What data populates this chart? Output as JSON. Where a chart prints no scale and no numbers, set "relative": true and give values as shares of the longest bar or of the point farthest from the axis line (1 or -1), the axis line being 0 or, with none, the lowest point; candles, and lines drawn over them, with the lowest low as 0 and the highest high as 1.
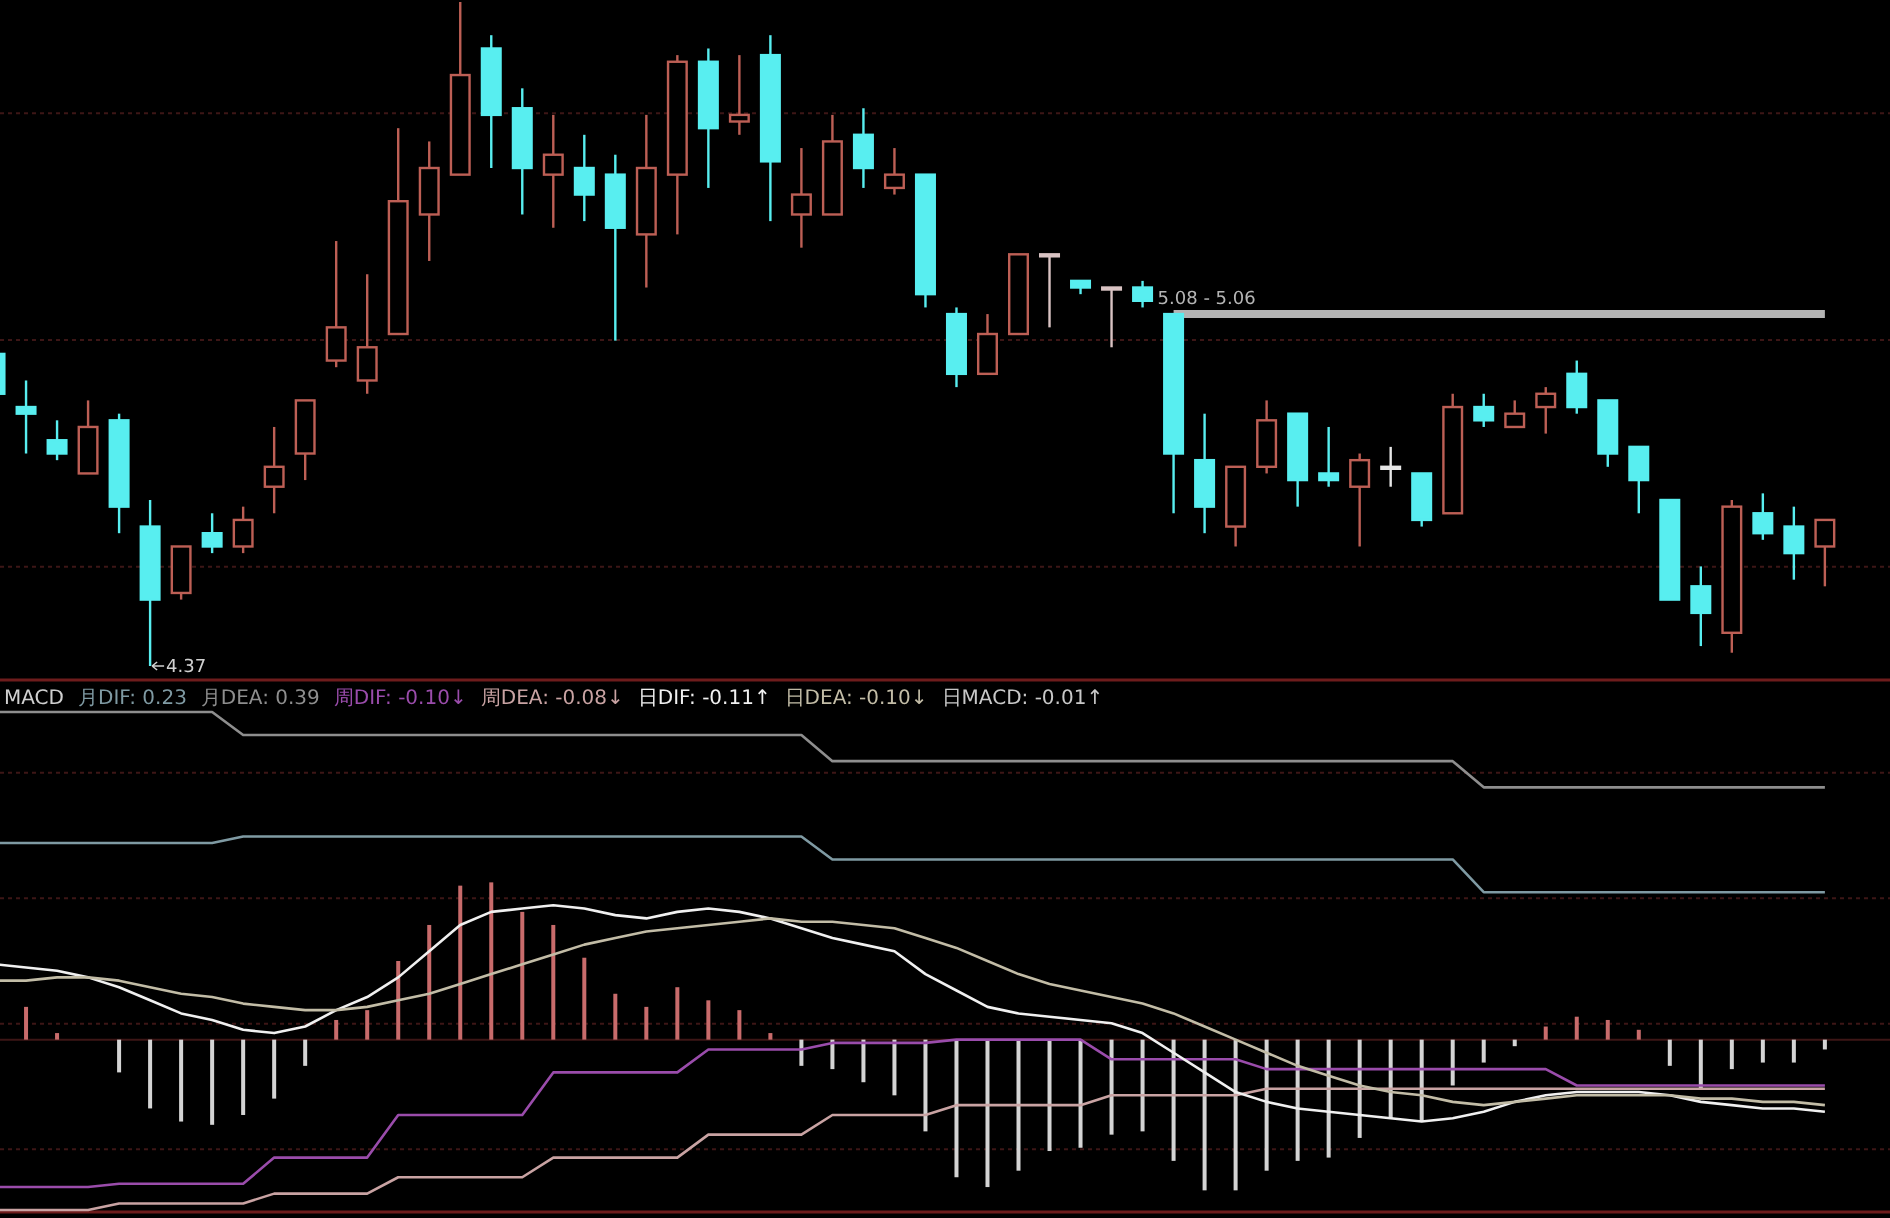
{
  "chart_data": [
    {
      "type": "candlestick",
      "relative": true,
      "grid": "y",
      "categories": [
        null,
        null,
        null,
        null,
        null,
        null,
        null,
        null,
        null,
        null,
        null,
        null,
        null,
        null,
        null,
        null,
        null,
        null,
        null,
        null,
        null,
        null,
        null,
        null,
        null,
        null,
        null,
        null,
        null,
        null,
        null,
        null,
        null,
        null,
        null,
        null,
        null,
        null,
        null,
        null,
        null,
        null,
        null,
        null,
        null,
        null,
        null,
        null,
        null,
        null,
        null,
        null,
        null,
        null,
        null,
        null,
        null,
        null,
        null,
        null
      ],
      "ohlc": [
        [
          0.47,
          0.48,
          0.4,
          0.41
        ],
        [
          0.39,
          0.43,
          0.32,
          0.38
        ],
        [
          0.34,
          0.37,
          0.31,
          0.32
        ],
        [
          0.29,
          0.4,
          0.29,
          0.36
        ],
        [
          0.37,
          0.38,
          0.2,
          0.24
        ],
        [
          0.21,
          0.25,
          0,
          0.1
        ],
        [
          0.11,
          0.18,
          0.1,
          0.18
        ],
        [
          0.2,
          0.23,
          0.17,
          0.18
        ],
        [
          0.18,
          0.24,
          0.17,
          0.22
        ],
        [
          0.27,
          0.36,
          0.23,
          0.3
        ],
        [
          0.32,
          0.4,
          0.28,
          0.4
        ],
        [
          0.46,
          0.64,
          0.45,
          0.51
        ],
        [
          0.43,
          0.59,
          0.41,
          0.48
        ],
        [
          0.5,
          0.81,
          0.5,
          0.7
        ],
        [
          0.68,
          0.79,
          0.61,
          0.75
        ],
        [
          0.74,
          1,
          0.74,
          0.89
        ],
        [
          0.93,
          0.95,
          0.75,
          0.83
        ],
        [
          0.84,
          0.87,
          0.68,
          0.75
        ],
        [
          0.74,
          0.83,
          0.66,
          0.77
        ],
        [
          0.75,
          0.8,
          0.67,
          0.71
        ],
        [
          0.74,
          0.77,
          0.49,
          0.66
        ],
        [
          0.65,
          0.83,
          0.57,
          0.75
        ],
        [
          0.74,
          0.92,
          0.65,
          0.91
        ],
        [
          0.91,
          0.93,
          0.72,
          0.81
        ],
        [
          0.82,
          0.92,
          0.8,
          0.83
        ],
        [
          0.92,
          0.95,
          0.67,
          0.76
        ],
        [
          0.68,
          0.78,
          0.63,
          0.71
        ],
        [
          0.68,
          0.83,
          0.68,
          0.79
        ],
        [
          0.8,
          0.84,
          0.72,
          0.75
        ],
        [
          0.72,
          0.78,
          0.71,
          0.74
        ],
        [
          0.74,
          0.74,
          0.54,
          0.56
        ],
        [
          0.53,
          0.54,
          0.42,
          0.44
        ],
        [
          0.44,
          0.53,
          0.44,
          0.5
        ],
        [
          0.5,
          0.62,
          0.5,
          0.62
        ],
        [
          0.62,
          0.62,
          0.51,
          0.62
        ],
        [
          0.58,
          0.58,
          0.56,
          0.57
        ],
        [
          0.57,
          0.57,
          0.48,
          0.57
        ],
        [
          0.57,
          0.58,
          0.54,
          0.55
        ],
        [
          0.53,
          0.53,
          0.23,
          0.32
        ],
        [
          0.31,
          0.38,
          0.2,
          0.24
        ],
        [
          0.21,
          0.3,
          0.18,
          0.3
        ],
        [
          0.3,
          0.4,
          0.29,
          0.37
        ],
        [
          0.38,
          0.38,
          0.24,
          0.28
        ],
        [
          0.29,
          0.36,
          0.27,
          0.28
        ],
        [
          0.27,
          0.32,
          0.18,
          0.31
        ],
        [
          0.3,
          0.33,
          0.27,
          0.3
        ],
        [
          0.29,
          0.29,
          0.21,
          0.22
        ],
        [
          0.23,
          0.41,
          0.23,
          0.39
        ],
        [
          0.39,
          0.41,
          0.36,
          0.37
        ],
        [
          0.36,
          0.4,
          0.36,
          0.38
        ],
        [
          0.39,
          0.42,
          0.35,
          0.41
        ],
        [
          0.44,
          0.46,
          0.38,
          0.39
        ],
        [
          0.4,
          0.4,
          0.3,
          0.32
        ],
        [
          0.33,
          0.33,
          0.23,
          0.28
        ],
        [
          0.25,
          0.25,
          0.1,
          0.1
        ],
        [
          0.12,
          0.15,
          0.03,
          0.08
        ],
        [
          0.05,
          0.25,
          0.02,
          0.24
        ],
        [
          0.23,
          0.26,
          0.19,
          0.2
        ],
        [
          0.21,
          0.24,
          0.13,
          0.17
        ],
        [
          0.18,
          0.22,
          0.12,
          0.22
        ]
      ],
      "colors": [
        "#58eef0",
        "#58eef0",
        "#58eef0",
        "#bd5f55",
        "#58eef0",
        "#58eef0",
        "#bd5f55",
        "#58eef0",
        "#bd5f55",
        "#bd5f55",
        "#bd5f55",
        "#bd5f55",
        "#bd5f55",
        "#bd5f55",
        "#bd5f55",
        "#bd5f55",
        "#58eef0",
        "#58eef0",
        "#bd5f55",
        "#58eef0",
        "#58eef0",
        "#bd5f55",
        "#bd5f55",
        "#58eef0",
        "#bd5f55",
        "#58eef0",
        "#bd5f55",
        "#bd5f55",
        "#58eef0",
        "#bd5f55",
        "#58eef0",
        "#58eef0",
        "#bd5f55",
        "#bd5f55",
        "#d9c3c3",
        "#58eef0",
        "#d9c3c3",
        "#58eef0",
        "#58eef0",
        "#58eef0",
        "#bd5f55",
        "#bd5f55",
        "#58eef0",
        "#58eef0",
        "#bd5f55",
        "#e6e6e6",
        "#58eef0",
        "#bd5f55",
        "#58eef0",
        "#bd5f55",
        "#bd5f55",
        "#58eef0",
        "#58eef0",
        "#58eef0",
        "#58eef0",
        "#58eef0",
        "#bd5f55",
        "#58eef0",
        "#58eef0",
        "#bd5f55"
      ],
      "series": [
        {
          "type": "line",
          "name": "5.08 - 5.06",
          "color": "#b4b4b4",
          "values": [
            null,
            null,
            null,
            null,
            null,
            null,
            null,
            null,
            null,
            null,
            null,
            null,
            null,
            null,
            null,
            null,
            null,
            null,
            null,
            null,
            null,
            null,
            null,
            null,
            null,
            null,
            null,
            null,
            null,
            null,
            null,
            null,
            null,
            null,
            null,
            null,
            null,
            null,
            0.53,
            0.53,
            0.53,
            0.53,
            0.53,
            0.53,
            0.53,
            0.53,
            0.53,
            0.53,
            0.53,
            0.53,
            0.53,
            0.53,
            0.53,
            0.53,
            0.53,
            0.53,
            0.53,
            0.53,
            0.53,
            0.53
          ]
        }
      ],
      "annotations": [
        "4.37"
      ]
    },
    {
      "type": "line",
      "title": "MACD",
      "relative": true,
      "grid": "y",
      "legend": "top left",
      "categories": [
        null,
        null,
        null,
        null,
        null,
        null,
        null,
        null,
        null,
        null,
        null,
        null,
        null,
        null,
        null,
        null,
        null,
        null,
        null,
        null,
        null,
        null,
        null,
        null,
        null,
        null,
        null,
        null,
        null,
        null,
        null,
        null,
        null,
        null,
        null,
        null,
        null,
        null,
        null,
        null,
        null,
        null,
        null,
        null,
        null,
        null,
        null,
        null,
        null,
        null,
        null,
        null,
        null,
        null,
        null,
        null,
        null,
        null,
        null,
        null
      ],
      "series": [
        {
          "name": "月DIF: 0.23",
          "type": "line",
          "color": "#7f9aa3",
          "values": [
            0.6,
            0.6,
            0.6,
            0.6,
            0.6,
            0.6,
            0.6,
            0.6,
            0.62,
            0.62,
            0.62,
            0.62,
            0.62,
            0.62,
            0.62,
            0.62,
            0.62,
            0.62,
            0.62,
            0.62,
            0.62,
            0.62,
            0.62,
            0.62,
            0.62,
            0.62,
            0.62,
            0.55,
            0.55,
            0.55,
            0.55,
            0.55,
            0.55,
            0.55,
            0.55,
            0.55,
            0.55,
            0.55,
            0.55,
            0.55,
            0.55,
            0.55,
            0.55,
            0.55,
            0.55,
            0.55,
            0.55,
            0.55,
            0.45,
            0.45,
            0.45,
            0.45,
            0.45,
            0.45,
            0.45,
            0.45,
            0.45,
            0.45,
            0.45,
            0.45
          ]
        },
        {
          "name": "月DEA: 0.39",
          "type": "line",
          "color": "#8e8e8e",
          "values": [
            1.0,
            1.0,
            1.0,
            1.0,
            1.0,
            1.0,
            1.0,
            1.0,
            0.93,
            0.93,
            0.93,
            0.93,
            0.93,
            0.93,
            0.93,
            0.93,
            0.93,
            0.93,
            0.93,
            0.93,
            0.93,
            0.93,
            0.93,
            0.93,
            0.93,
            0.93,
            0.93,
            0.85,
            0.85,
            0.85,
            0.85,
            0.85,
            0.85,
            0.85,
            0.85,
            0.85,
            0.85,
            0.85,
            0.85,
            0.85,
            0.85,
            0.85,
            0.85,
            0.85,
            0.85,
            0.85,
            0.85,
            0.85,
            0.77,
            0.77,
            0.77,
            0.77,
            0.77,
            0.77,
            0.77,
            0.77,
            0.77,
            0.77,
            0.77,
            0.77
          ]
        },
        {
          "name": "周DIF: -0.10↓",
          "type": "line",
          "color": "#9a4cab",
          "values": [
            -0.45,
            -0.45,
            -0.45,
            -0.45,
            -0.44,
            -0.44,
            -0.44,
            -0.44,
            -0.44,
            -0.36,
            -0.36,
            -0.36,
            -0.36,
            -0.23,
            -0.23,
            -0.23,
            -0.23,
            -0.23,
            -0.1,
            -0.1,
            -0.1,
            -0.1,
            -0.1,
            -0.03,
            -0.03,
            -0.03,
            -0.03,
            -0.01,
            -0.01,
            -0.01,
            -0.01,
            0.0,
            0.0,
            0.0,
            0.0,
            0.0,
            -0.06,
            -0.06,
            -0.06,
            -0.06,
            -0.06,
            -0.09,
            -0.09,
            -0.09,
            -0.09,
            -0.09,
            -0.09,
            -0.09,
            -0.09,
            -0.09,
            -0.09,
            -0.14,
            -0.14,
            -0.14,
            -0.14,
            -0.14,
            -0.14,
            -0.14,
            -0.14,
            -0.14
          ]
        },
        {
          "name": "周DEA: -0.08↓",
          "type": "line",
          "color": "#c9a3a3",
          "values": [
            -0.52,
            -0.52,
            -0.52,
            -0.52,
            -0.5,
            -0.5,
            -0.5,
            -0.5,
            -0.5,
            -0.47,
            -0.47,
            -0.47,
            -0.47,
            -0.42,
            -0.42,
            -0.42,
            -0.42,
            -0.42,
            -0.36,
            -0.36,
            -0.36,
            -0.36,
            -0.36,
            -0.29,
            -0.29,
            -0.29,
            -0.29,
            -0.23,
            -0.23,
            -0.23,
            -0.23,
            -0.2,
            -0.2,
            -0.2,
            -0.2,
            -0.2,
            -0.17,
            -0.17,
            -0.17,
            -0.17,
            -0.17,
            -0.15,
            -0.15,
            -0.15,
            -0.15,
            -0.15,
            -0.15,
            -0.15,
            -0.15,
            -0.15,
            -0.15,
            -0.15,
            -0.15,
            -0.15,
            -0.15,
            -0.15,
            -0.15,
            -0.15,
            -0.15,
            -0.15
          ]
        },
        {
          "name": "日DIF: -0.11↑",
          "type": "line",
          "color": "#f0f0f0",
          "values": [
            0.23,
            0.22,
            0.21,
            0.19,
            0.16,
            0.12,
            0.08,
            0.06,
            0.03,
            0.02,
            0.04,
            0.09,
            0.13,
            0.19,
            0.27,
            0.35,
            0.39,
            0.4,
            0.41,
            0.4,
            0.38,
            0.37,
            0.39,
            0.4,
            0.39,
            0.37,
            0.34,
            0.31,
            0.29,
            0.27,
            0.2,
            0.15,
            0.1,
            0.08,
            0.07,
            0.06,
            0.05,
            0.02,
            -0.04,
            -0.1,
            -0.16,
            -0.19,
            -0.21,
            -0.22,
            -0.23,
            -0.24,
            -0.25,
            -0.24,
            -0.22,
            -0.19,
            -0.17,
            -0.16,
            -0.16,
            -0.16,
            -0.17,
            -0.19,
            -0.2,
            -0.21,
            -0.21,
            -0.22
          ]
        },
        {
          "name": "日DEA: -0.10↓",
          "type": "line",
          "color": "#c2bca6",
          "values": [
            0.18,
            0.18,
            0.19,
            0.19,
            0.18,
            0.16,
            0.14,
            0.13,
            0.11,
            0.1,
            0.09,
            0.09,
            0.1,
            0.12,
            0.14,
            0.17,
            0.2,
            0.23,
            0.26,
            0.29,
            0.31,
            0.33,
            0.34,
            0.35,
            0.36,
            0.37,
            0.36,
            0.36,
            0.35,
            0.34,
            0.31,
            0.28,
            0.24,
            0.2,
            0.17,
            0.15,
            0.13,
            0.11,
            0.08,
            0.04,
            0.0,
            -0.04,
            -0.08,
            -0.11,
            -0.14,
            -0.16,
            -0.17,
            -0.19,
            -0.2,
            -0.19,
            -0.18,
            -0.17,
            -0.17,
            -0.17,
            -0.17,
            -0.18,
            -0.18,
            -0.19,
            -0.19,
            -0.2
          ]
        },
        {
          "name": "日MACD: -0.01↑",
          "type": "bar",
          "color": "#c8c8c8",
          "values": [
            null,
            0.1,
            0.02,
            null,
            -0.1,
            -0.21,
            -0.25,
            -0.26,
            -0.23,
            -0.18,
            -0.08,
            0.06,
            0.09,
            0.24,
            0.35,
            0.47,
            0.48,
            0.39,
            0.35,
            0.25,
            0.14,
            0.1,
            0.16,
            0.12,
            0.09,
            0.02,
            -0.08,
            -0.09,
            -0.13,
            -0.17,
            -0.28,
            -0.42,
            -0.45,
            -0.4,
            -0.34,
            -0.33,
            -0.29,
            -0.28,
            -0.37,
            -0.46,
            -0.46,
            -0.4,
            -0.37,
            -0.36,
            -0.3,
            -0.24,
            -0.25,
            -0.14,
            -0.07,
            -0.02,
            0.04,
            0.07,
            0.06,
            0.03,
            -0.08,
            -0.15,
            -0.09,
            -0.07,
            -0.07,
            -0.03
          ],
          "colors": [
            null,
            "#c86b6b",
            "#c86b6b",
            null,
            "#d4d4d4",
            "#d4d4d4",
            "#d4d4d4",
            "#d4d4d4",
            "#d4d4d4",
            "#d4d4d4",
            "#d4d4d4",
            "#c86b6b",
            "#c86b6b",
            "#c86b6b",
            "#c86b6b",
            "#c86b6b",
            "#c86b6b",
            "#c86b6b",
            "#c86b6b",
            "#c86b6b",
            "#c86b6b",
            "#c86b6b",
            "#c86b6b",
            "#c86b6b",
            "#c86b6b",
            "#c86b6b",
            "#d4d4d4",
            "#d4d4d4",
            "#d4d4d4",
            "#d4d4d4",
            "#d4d4d4",
            "#d4d4d4",
            "#d4d4d4",
            "#d4d4d4",
            "#d4d4d4",
            "#d4d4d4",
            "#d4d4d4",
            "#d4d4d4",
            "#d4d4d4",
            "#d4d4d4",
            "#d4d4d4",
            "#d4d4d4",
            "#d4d4d4",
            "#d4d4d4",
            "#d4d4d4",
            "#d4d4d4",
            "#d4d4d4",
            "#d4d4d4",
            "#d4d4d4",
            "#d4d4d4",
            "#c86b6b",
            "#c86b6b",
            "#c86b6b",
            "#c86b6b",
            "#d4d4d4",
            "#d4d4d4",
            "#d4d4d4",
            "#d4d4d4",
            "#d4d4d4",
            "#d4d4d4"
          ]
        }
      ]
    }
  ]
}
